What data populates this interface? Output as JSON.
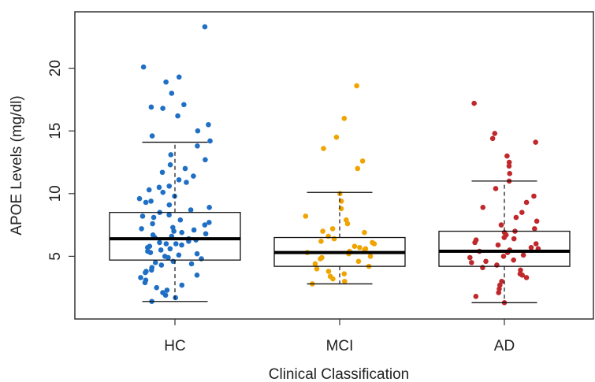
{
  "chart_data": {
    "type": "box",
    "x_label": "Clinical Classification",
    "y_label": "APOE Levels (mg/dl)",
    "categories": [
      "HC",
      "MCI",
      "AD"
    ],
    "ylim": [
      0,
      24.5
    ],
    "yticks": [
      5,
      10,
      15,
      20
    ],
    "boxes": [
      {
        "color": "#1f6fc5",
        "whislo": 1.4,
        "q1": 4.7,
        "med": 6.4,
        "q3": 8.5,
        "whishi": 14.1,
        "points": [
          23.3,
          20.1,
          19.3,
          18.9,
          18.0,
          17.1,
          16.9,
          16.8,
          16.2,
          15.5,
          15.0,
          14.6,
          14.2,
          13.8,
          13.1,
          12.7,
          12.3,
          12.0,
          11.7,
          11.4,
          11.1,
          10.9,
          10.6,
          10.3,
          10.1,
          9.8,
          9.6,
          9.4,
          9.1,
          8.9,
          8.7,
          8.5,
          8.3,
          8.1,
          7.9,
          7.7,
          7.5,
          7.3,
          7.1,
          6.9,
          6.8,
          6.6,
          6.5,
          6.4,
          6.3,
          6.1,
          6.0,
          5.8,
          5.7,
          5.5,
          5.4,
          5.2,
          5.1,
          4.9,
          4.8,
          4.6,
          4.5,
          4.3,
          4.1,
          3.9,
          3.7,
          3.5,
          3.3,
          3.1,
          2.9,
          2.7,
          2.5,
          2.3,
          2.1,
          1.9,
          1.7,
          1.4,
          7.2,
          6.7,
          5.9,
          5.3,
          6.2,
          7.6,
          8.2,
          4.4,
          5.6,
          9.3,
          10.5,
          3.8,
          6.0,
          7.0,
          5.0
        ]
      },
      {
        "color": "#f0a400",
        "whislo": 2.8,
        "q1": 4.2,
        "med": 5.3,
        "q3": 6.5,
        "whishi": 10.1,
        "points": [
          18.6,
          16.0,
          14.5,
          13.6,
          12.6,
          12.0,
          10.0,
          9.4,
          8.8,
          8.2,
          7.9,
          7.6,
          7.2,
          6.9,
          6.6,
          6.4,
          6.2,
          6.0,
          5.8,
          5.6,
          5.5,
          5.3,
          5.2,
          5.0,
          4.8,
          4.6,
          4.4,
          4.2,
          4.0,
          3.8,
          3.6,
          3.4,
          3.2,
          3.0,
          2.8,
          5.4,
          6.1,
          4.9,
          7.0,
          5.7
        ]
      },
      {
        "color": "#c0282c",
        "whislo": 1.3,
        "q1": 4.2,
        "med": 5.4,
        "q3": 7.0,
        "whishi": 11.0,
        "points": [
          17.2,
          14.8,
          14.4,
          14.1,
          13.0,
          12.5,
          12.2,
          11.6,
          11.0,
          10.4,
          9.8,
          9.3,
          8.9,
          8.5,
          8.1,
          7.8,
          7.5,
          7.2,
          6.9,
          6.7,
          6.5,
          6.3,
          6.1,
          5.9,
          5.7,
          5.5,
          5.4,
          5.3,
          5.1,
          4.9,
          4.7,
          4.5,
          4.3,
          4.1,
          3.9,
          3.6,
          3.3,
          3.0,
          2.7,
          2.4,
          2.1,
          1.8,
          1.3,
          5.0,
          6.0,
          4.6,
          5.6,
          7.0,
          3.5,
          6.4
        ]
      }
    ]
  }
}
